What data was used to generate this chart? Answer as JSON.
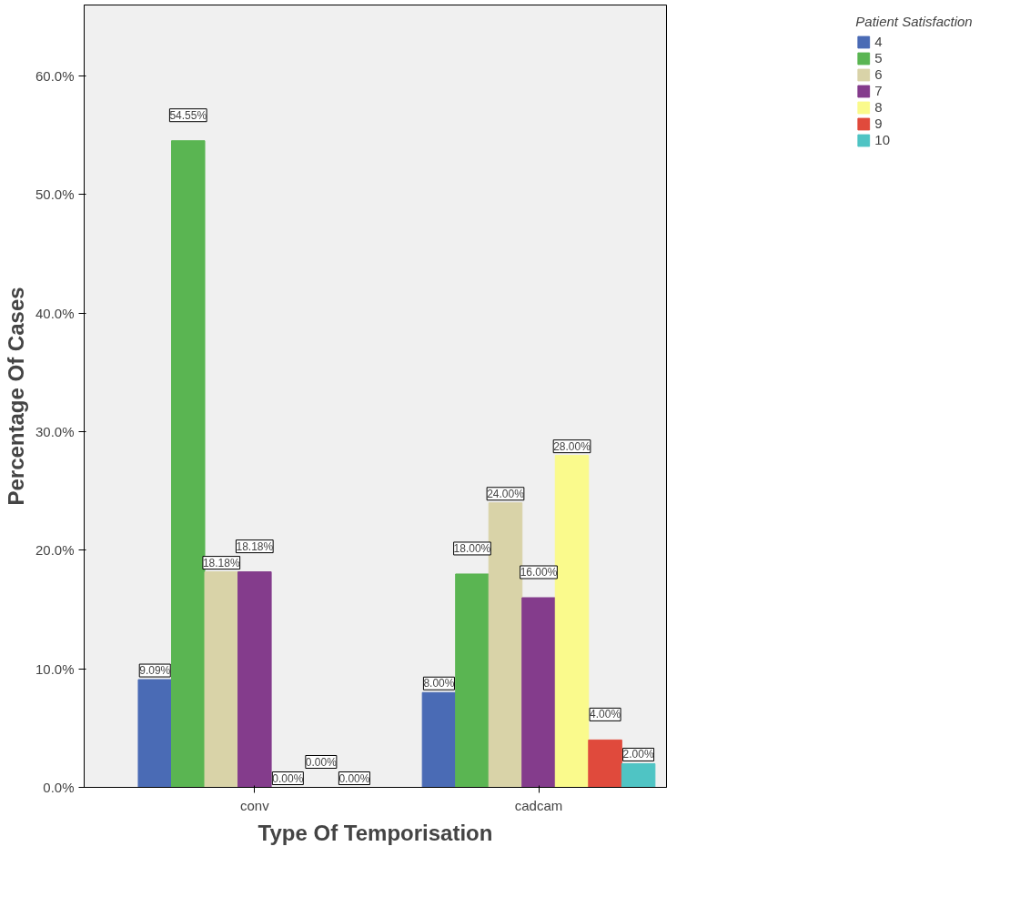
{
  "chart_data": {
    "type": "bar",
    "xlabel": "Type Of Temporisation",
    "ylabel": "Percentage Of Cases",
    "legend_title": "Patient Satisfaction",
    "legend": "top right",
    "grid": false,
    "categories": [
      "conv",
      "cadcam"
    ],
    "ylim": [
      0,
      66
    ],
    "yticks": [
      {
        "value": 0,
        "label": "0.0%"
      },
      {
        "value": 10,
        "label": "10.0%"
      },
      {
        "value": 20,
        "label": "20.0%"
      },
      {
        "value": 30,
        "label": "30.0%"
      },
      {
        "value": 40,
        "label": "40.0%"
      },
      {
        "value": 50,
        "label": "50.0%"
      },
      {
        "value": 60,
        "label": "60.0%"
      }
    ],
    "series": [
      {
        "name": "4",
        "color": "#4a6bb5",
        "values": [
          9.09,
          8.0
        ],
        "value_labels": [
          "9.09%",
          "8.00%"
        ]
      },
      {
        "name": "5",
        "color": "#5ab552",
        "values": [
          54.55,
          18.0
        ],
        "value_labels": [
          "54.55%",
          "18.00%"
        ]
      },
      {
        "name": "6",
        "color": "#d9d3a8",
        "values": [
          18.18,
          24.0
        ],
        "value_labels": [
          "18.18%",
          "24.00%"
        ]
      },
      {
        "name": "7",
        "color": "#843c8c",
        "values": [
          18.18,
          16.0
        ],
        "value_labels": [
          "18.18%",
          "16.00%"
        ]
      },
      {
        "name": "8",
        "color": "#fafa8c",
        "values": [
          0.0,
          28.0
        ],
        "value_labels": [
          "0.00%",
          "28.00%"
        ]
      },
      {
        "name": "9",
        "color": "#e04a3c",
        "values": [
          0.0,
          4.0
        ],
        "value_labels": [
          "0.00%",
          "4.00%"
        ]
      },
      {
        "name": "10",
        "color": "#4fc4c4",
        "values": [
          0.0,
          2.0
        ],
        "value_labels": [
          "0.00%",
          "2.00%"
        ]
      }
    ]
  }
}
